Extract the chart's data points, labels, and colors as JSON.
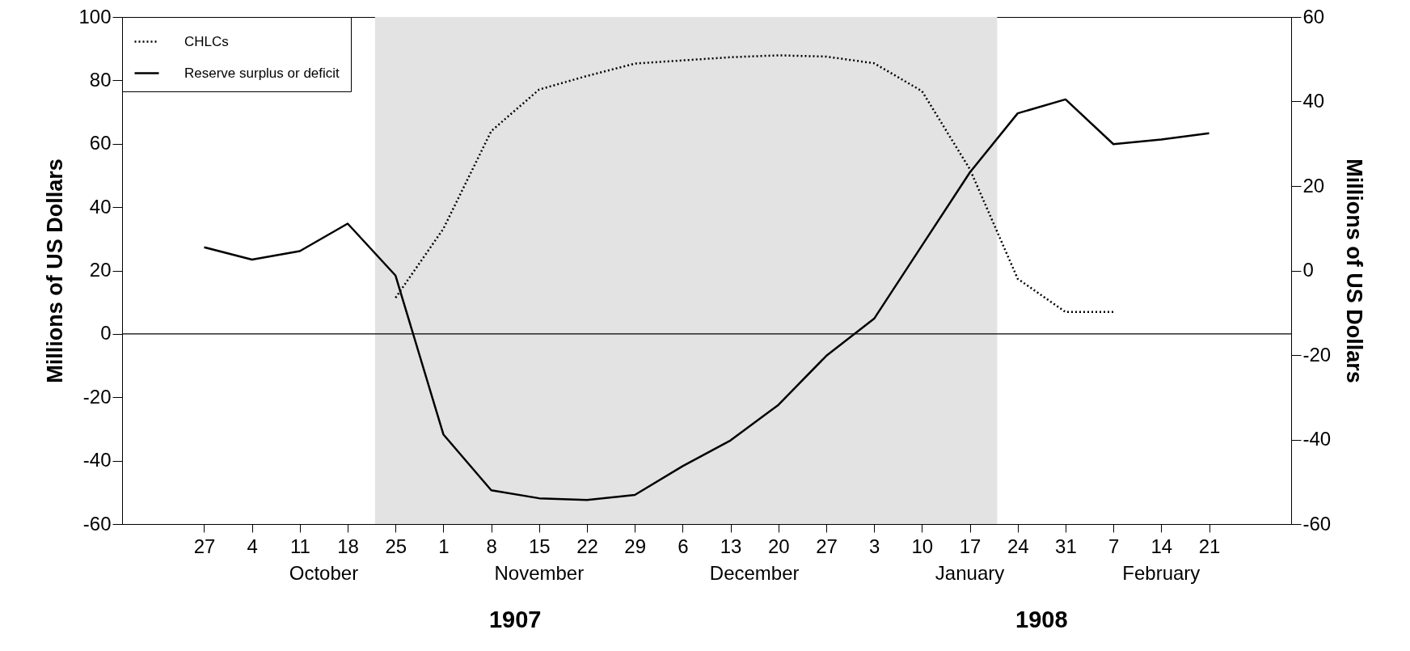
{
  "chart_data": {
    "type": "line",
    "ylabel": "Millions of US Dollars",
    "y2label": "Millions of US Dollars",
    "xlim": [
      "1907-09-15",
      "1908-03-04"
    ],
    "xticks": [
      {
        "value": "1907-09-27",
        "label": "27"
      },
      {
        "value": "1907-10-04",
        "label": "4"
      },
      {
        "value": "1907-10-11",
        "label": "11"
      },
      {
        "value": "1907-10-18",
        "label": "18"
      },
      {
        "value": "1907-10-25",
        "label": "25"
      },
      {
        "value": "1907-11-01",
        "label": "1"
      },
      {
        "value": "1907-11-08",
        "label": "8"
      },
      {
        "value": "1907-11-15",
        "label": "15"
      },
      {
        "value": "1907-11-22",
        "label": "22"
      },
      {
        "value": "1907-11-29",
        "label": "29"
      },
      {
        "value": "1907-12-06",
        "label": "6"
      },
      {
        "value": "1907-12-13",
        "label": "13"
      },
      {
        "value": "1907-12-20",
        "label": "20"
      },
      {
        "value": "1907-12-27",
        "label": "27"
      },
      {
        "value": "1908-01-03",
        "label": "3"
      },
      {
        "value": "1908-01-10",
        "label": "10"
      },
      {
        "value": "1908-01-17",
        "label": "17"
      },
      {
        "value": "1908-01-24",
        "label": "24"
      },
      {
        "value": "1908-01-31",
        "label": "31"
      },
      {
        "value": "1908-02-07",
        "label": "7"
      },
      {
        "value": "1908-02-14",
        "label": "14"
      },
      {
        "value": "1908-02-21",
        "label": "21"
      }
    ],
    "ylim": [
      -60,
      100
    ],
    "yticks": [
      -60,
      -40,
      -20,
      0,
      20,
      40,
      60,
      80,
      100
    ],
    "y2lim": [
      -60,
      60
    ],
    "y2ticks": [
      -60,
      -40,
      -20,
      0,
      20,
      40,
      60
    ],
    "series": [
      {
        "name": "CHLCs",
        "color": "#000000",
        "line_style": "dotted",
        "x": [
          "1907-10-25",
          "1907-11-01",
          "1907-11-08",
          "1907-11-15",
          "1907-11-22",
          "1907-11-29",
          "1907-12-06",
          "1907-12-13",
          "1907-12-20",
          "1907-12-27",
          "1908-01-03",
          "1908-01-10",
          "1908-01-17",
          "1908-01-24",
          "1908-01-31",
          "1908-02-07"
        ],
        "values": [
          11.4,
          33.2,
          64,
          77.1,
          81.4,
          85.3,
          86.3,
          87.3,
          87.9,
          87.5,
          85.4,
          76.6,
          52,
          17.4,
          6.9,
          6.9
        ]
      },
      {
        "name": "Reserve surplus or deficit",
        "color": "#000000",
        "line_style": "solid",
        "axis": "y2",
        "x": [
          "1907-09-27",
          "1907-10-04",
          "1907-10-11",
          "1907-10-18",
          "1907-10-25",
          "1907-11-01",
          "1907-11-08",
          "1907-11-15",
          "1907-11-22",
          "1907-11-29",
          "1907-12-06",
          "1907-12-13",
          "1907-12-20",
          "1907-12-27",
          "1908-01-03",
          "1908-01-10",
          "1908-01-17",
          "1908-01-24",
          "1908-01-31",
          "1908-02-07",
          "1908-02-14",
          "1908-02-21"
        ],
        "values": [
          5.5,
          2.6,
          4.6,
          11.1,
          -1.2,
          -38.8,
          -52,
          -53.9,
          -54.3,
          -53.1,
          -46.3,
          -40.2,
          -31.8,
          -20.2,
          -11.4,
          5.9,
          23.2,
          37.2,
          40.5,
          29.9,
          31,
          32.5
        ]
      }
    ],
    "bands": [
      {
        "axis": "x",
        "from": "1907-10-22",
        "to": "1908-01-21",
        "color": "#e3e3e3"
      }
    ],
    "ref_lines": [
      {
        "axis": "y",
        "value": 0,
        "color": "#000000"
      }
    ],
    "annotations": [
      "October",
      "November",
      "December",
      "January",
      "February",
      "1907",
      "1908"
    ],
    "legend": "top left"
  }
}
